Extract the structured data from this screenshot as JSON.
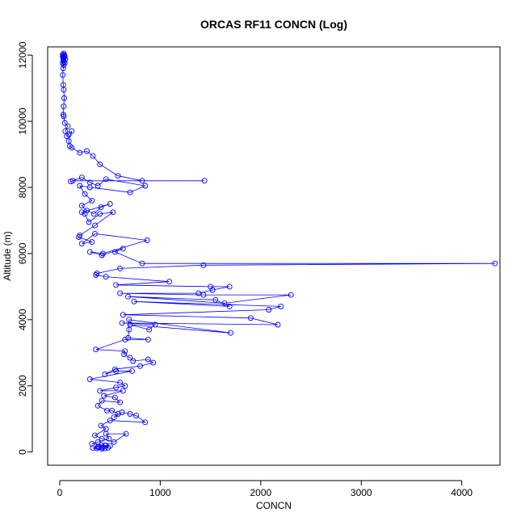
{
  "chart_data": {
    "type": "line",
    "title": "ORCAS RF11 CONCN (Log)",
    "xlabel": "CONCN",
    "ylabel": "Altitude (m)",
    "xlim": [
      -120,
      4380
    ],
    "ylim": [
      -400,
      12250
    ],
    "xticks": [
      0,
      1000,
      2000,
      3000,
      4000
    ],
    "yticks": [
      0,
      2000,
      4000,
      6000,
      8000,
      10000,
      12000
    ],
    "series_color": "#0000ff",
    "grid": false,
    "legend": "none",
    "series": [
      {
        "points": [
          [
            40,
            12050
          ],
          [
            30,
            12020
          ],
          [
            45,
            12000
          ],
          [
            35,
            11980
          ],
          [
            50,
            11960
          ],
          [
            30,
            11950
          ],
          [
            45,
            11930
          ],
          [
            40,
            11900
          ],
          [
            55,
            11880
          ],
          [
            35,
            11860
          ],
          [
            40,
            11800
          ],
          [
            50,
            11770
          ],
          [
            30,
            11760
          ],
          [
            40,
            11700
          ],
          [
            35,
            11600
          ],
          [
            30,
            11400
          ],
          [
            35,
            11100
          ],
          [
            40,
            10950
          ],
          [
            45,
            10700
          ],
          [
            40,
            10450
          ],
          [
            35,
            10200
          ],
          [
            40,
            10150
          ],
          [
            50,
            9950
          ],
          [
            80,
            9850
          ],
          [
            55,
            9700
          ],
          [
            90,
            9600
          ],
          [
            70,
            9550
          ],
          [
            120,
            9700
          ],
          [
            90,
            9400
          ],
          [
            100,
            9250
          ],
          [
            120,
            9200
          ],
          [
            200,
            9050
          ],
          [
            270,
            9100
          ],
          [
            330,
            8950
          ],
          [
            400,
            8700
          ],
          [
            580,
            8350
          ],
          [
            820,
            8200
          ],
          [
            1440,
            8200
          ],
          [
            130,
            8200
          ],
          [
            110,
            8180
          ],
          [
            220,
            8300
          ],
          [
            300,
            8150
          ],
          [
            380,
            8050
          ],
          [
            460,
            8250
          ],
          [
            850,
            8050
          ],
          [
            700,
            7850
          ],
          [
            300,
            8000
          ],
          [
            200,
            8050
          ],
          [
            250,
            7800
          ],
          [
            320,
            7600
          ],
          [
            220,
            7450
          ],
          [
            270,
            7300
          ],
          [
            340,
            7200
          ],
          [
            410,
            7400
          ],
          [
            500,
            7500
          ],
          [
            220,
            7250
          ],
          [
            250,
            7200
          ],
          [
            290,
            6950
          ],
          [
            400,
            7200
          ],
          [
            530,
            7250
          ],
          [
            350,
            6850
          ],
          [
            200,
            6550
          ],
          [
            190,
            6500
          ],
          [
            320,
            6350
          ],
          [
            220,
            6300
          ],
          [
            350,
            6600
          ],
          [
            870,
            6400
          ],
          [
            430,
            6000
          ],
          [
            300,
            6050
          ],
          [
            420,
            5950
          ],
          [
            630,
            6150
          ],
          [
            550,
            6050
          ],
          [
            820,
            5700
          ],
          [
            4330,
            5700
          ],
          [
            1430,
            5650
          ],
          [
            600,
            5550
          ],
          [
            370,
            5400
          ],
          [
            360,
            5350
          ],
          [
            460,
            5300
          ],
          [
            1090,
            5150
          ],
          [
            560,
            5050
          ],
          [
            1500,
            5000
          ],
          [
            1690,
            5000
          ],
          [
            1520,
            4900
          ],
          [
            1380,
            4800
          ],
          [
            600,
            4800
          ],
          [
            1430,
            4750
          ],
          [
            2300,
            4750
          ],
          [
            1640,
            4500
          ],
          [
            680,
            4700
          ],
          [
            1550,
            4600
          ],
          [
            1690,
            4400
          ],
          [
            740,
            4550
          ],
          [
            2200,
            4400
          ],
          [
            2080,
            4300
          ],
          [
            630,
            4150
          ],
          [
            1900,
            4050
          ],
          [
            2170,
            3850
          ],
          [
            620,
            3900
          ],
          [
            950,
            3850
          ],
          [
            890,
            3700
          ],
          [
            700,
            3850
          ],
          [
            1700,
            3600
          ],
          [
            690,
            4000
          ],
          [
            690,
            3700
          ],
          [
            680,
            3450
          ],
          [
            880,
            3400
          ],
          [
            650,
            3400
          ],
          [
            360,
            3100
          ],
          [
            650,
            3050
          ],
          [
            640,
            2950
          ],
          [
            700,
            2850
          ],
          [
            730,
            2750
          ],
          [
            880,
            2800
          ],
          [
            930,
            2700
          ],
          [
            800,
            2600
          ],
          [
            550,
            2500
          ],
          [
            450,
            2350
          ],
          [
            560,
            2450
          ],
          [
            720,
            2450
          ],
          [
            300,
            2200
          ],
          [
            600,
            2100
          ],
          [
            650,
            2000
          ],
          [
            560,
            1950
          ],
          [
            400,
            1850
          ],
          [
            630,
            1850
          ],
          [
            440,
            1700
          ],
          [
            550,
            1650
          ],
          [
            600,
            1500
          ],
          [
            420,
            1550
          ],
          [
            380,
            1400
          ],
          [
            470,
            1250
          ],
          [
            520,
            1250
          ],
          [
            580,
            1150
          ],
          [
            540,
            1050
          ],
          [
            620,
            1200
          ],
          [
            700,
            1150
          ],
          [
            760,
            1100
          ],
          [
            850,
            900
          ],
          [
            500,
            950
          ],
          [
            410,
            800
          ],
          [
            460,
            700
          ],
          [
            350,
            500
          ],
          [
            420,
            400
          ],
          [
            540,
            300
          ],
          [
            660,
            550
          ],
          [
            460,
            550
          ],
          [
            490,
            400
          ],
          [
            380,
            300
          ],
          [
            320,
            250
          ],
          [
            450,
            200
          ],
          [
            380,
            150
          ],
          [
            330,
            120
          ],
          [
            370,
            110
          ],
          [
            420,
            100
          ],
          [
            450,
            110
          ],
          [
            480,
            130
          ],
          [
            420,
            140
          ],
          [
            390,
            160
          ],
          [
            500,
            180
          ],
          [
            460,
            200
          ],
          [
            410,
            210
          ]
        ]
      }
    ]
  }
}
